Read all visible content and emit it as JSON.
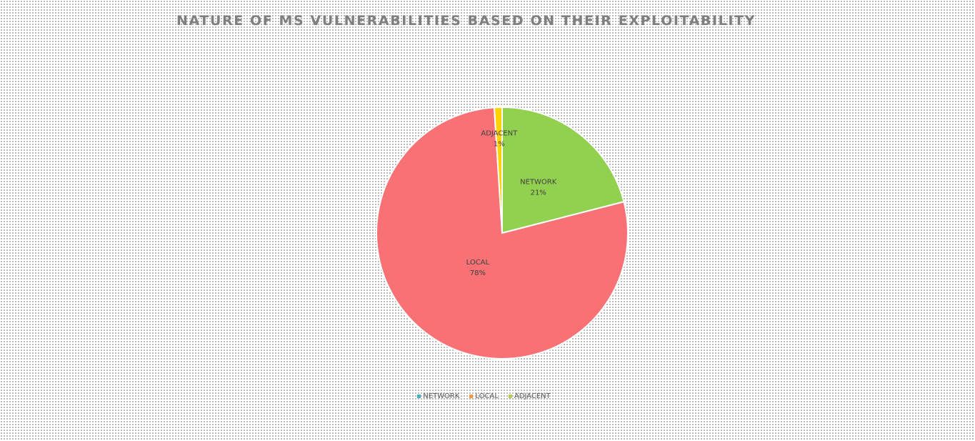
{
  "chart_data": {
    "type": "pie",
    "title": "NATURE OF MS VULNERABILITIES BASED ON THEIR EXPLOITABILITY",
    "categories": [
      "NETWORK",
      "LOCAL",
      "ADJACENT"
    ],
    "values": [
      21,
      78,
      1
    ],
    "value_labels": [
      "21%",
      "78%",
      "1%"
    ],
    "colors": [
      "#92d050",
      "#f87175",
      "#ffd200"
    ],
    "legend_colors": [
      "#4bacc6",
      "#f79646",
      "#b8cc4a"
    ],
    "legend_position": "bottom",
    "start_angle_deg": 0,
    "direction": "clockwise"
  }
}
